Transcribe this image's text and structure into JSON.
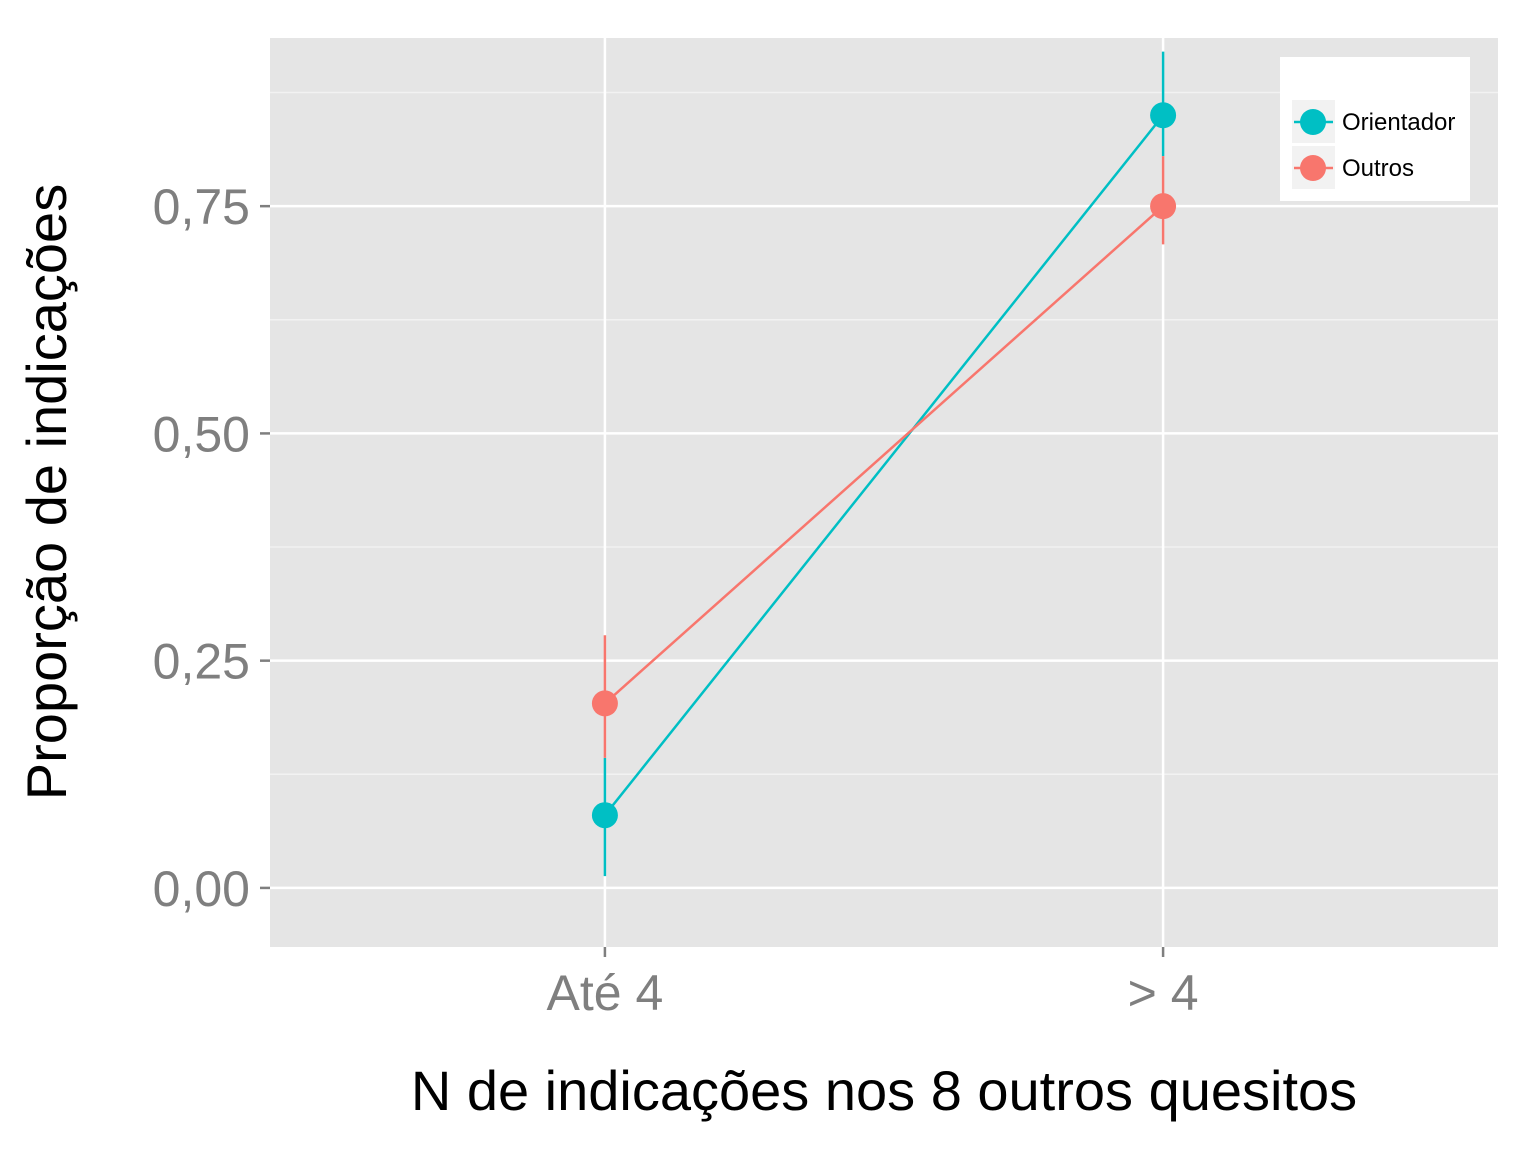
{
  "chart_data": {
    "type": "line",
    "title": "",
    "xlabel": "N de indicações nos 8 outros quesitos",
    "ylabel": "Proporção de indicações",
    "categories": [
      "Até 4",
      "> 4"
    ],
    "ylim": [
      -0.065,
      0.935
    ],
    "yticks": [
      0.0,
      0.25,
      0.5,
      0.75
    ],
    "ytick_labels": [
      "0,00",
      "0,25",
      "0,50",
      "0,75"
    ],
    "grid": true,
    "legend_position": "top-right",
    "series": [
      {
        "name": "Orientador",
        "color": "#00BFC4",
        "values": [
          0.08,
          0.85
        ],
        "lower": [
          0.013,
          0.805
        ],
        "upper": [
          0.143,
          0.92
        ]
      },
      {
        "name": "Outros",
        "color": "#F8766D",
        "values": [
          0.203,
          0.75
        ],
        "lower": [
          0.143,
          0.708
        ],
        "upper": [
          0.278,
          0.805
        ]
      }
    ]
  }
}
